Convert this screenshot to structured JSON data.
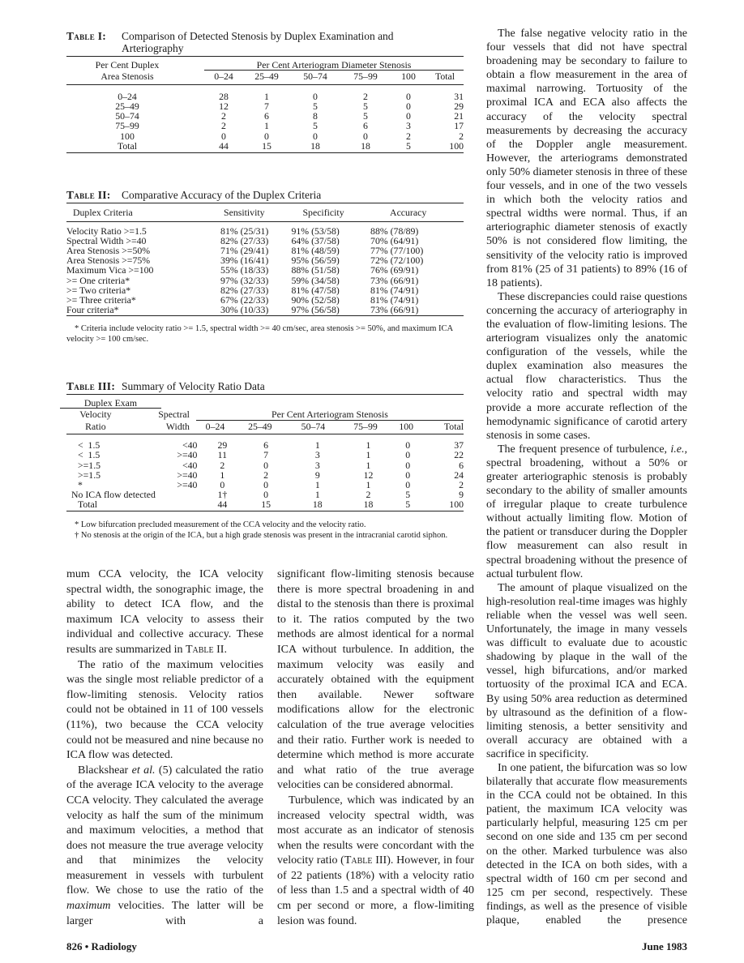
{
  "table1": {
    "label": "Table I:",
    "title_line1": "Comparison of Detected Stenosis by Duplex Examination and",
    "title_line2": "Arteriography",
    "row_header_line1": "Per Cent Duplex",
    "row_header_line2": "Area Stenosis",
    "group_header": "Per Cent Arteriogram Diameter Stenosis",
    "columns": [
      "0–24",
      "25–49",
      "50–74",
      "75–99",
      "100",
      "Total"
    ],
    "rows": [
      [
        "0–24",
        "28",
        "1",
        "0",
        "2",
        "0",
        "31"
      ],
      [
        "25–49",
        "12",
        "7",
        "5",
        "5",
        "0",
        "29"
      ],
      [
        "50–74",
        "2",
        "6",
        "8",
        "5",
        "0",
        "21"
      ],
      [
        "75–99",
        "2",
        "1",
        "5",
        "6",
        "3",
        "17"
      ],
      [
        "100",
        "0",
        "0",
        "0",
        "0",
        "2",
        "2"
      ],
      [
        "Total",
        "44",
        "15",
        "18",
        "18",
        "5",
        "100"
      ]
    ]
  },
  "table2": {
    "label": "Table II:",
    "title": "Comparative Accuracy of the Duplex Criteria",
    "columns": [
      "Duplex Criteria",
      "Sensitivity",
      "Specificity",
      "Accuracy"
    ],
    "rows": [
      [
        "Velocity Ratio >=1.5",
        "81% (25/31)",
        "91% (53/58)",
        "88% (78/89)"
      ],
      [
        "Spectral Width >=40",
        "82% (27/33)",
        "64% (37/58)",
        "70% (64/91)"
      ],
      [
        "Area Stenosis >=50%",
        "71% (29/41)",
        "81% (48/59)",
        "77% (77/100)"
      ],
      [
        "Area Stenosis >=75%",
        "39% (16/41)",
        "95% (56/59)",
        "72% (72/100)"
      ],
      [
        "Maximum Vica >=100",
        "55% (18/33)",
        "88% (51/58)",
        "76% (69/91)"
      ],
      [
        ">= One criteria*",
        "97% (32/33)",
        "59% (34/58)",
        "73% (66/91)"
      ],
      [
        ">= Two criteria*",
        "82% (27/33)",
        "81% (47/58)",
        "81% (74/91)"
      ],
      [
        ">= Three criteria*",
        "67% (22/33)",
        "90% (52/58)",
        "81% (74/91)"
      ],
      [
        "Four criteria*",
        "30% (10/33)",
        "97% (56/58)",
        "73% (66/91)"
      ]
    ],
    "footnote": "* Criteria include velocity ratio >= 1.5, spectral width >= 40 cm/sec, area stenosis >= 50%, and maximum ICA velocity >= 100 cm/sec."
  },
  "table3": {
    "label": "Table III:",
    "title": "Summary of Velocity Ratio Data",
    "duplex_header": "Duplex Exam",
    "sub1_line1": "Velocity",
    "sub1_line2": "Ratio",
    "sub2_line1": "Spectral",
    "sub2_line2": "Width",
    "group_header": "Per Cent Arteriogram Stenosis",
    "columns": [
      "0–24",
      "25–49",
      "50–74",
      "75–99",
      "100",
      "Total"
    ],
    "rows": [
      [
        "<  1.5",
        "<40",
        "29",
        "6",
        "1",
        "1",
        "0",
        "37"
      ],
      [
        "<  1.5",
        ">=40",
        "11",
        "7",
        "3",
        "1",
        "0",
        "22"
      ],
      [
        ">=1.5",
        "<40",
        "2",
        "0",
        "3",
        "1",
        "0",
        "6"
      ],
      [
        ">=1.5",
        ">=40",
        "1",
        "2",
        "9",
        "12",
        "0",
        "24"
      ],
      [
        "*",
        ">=40",
        "0",
        "0",
        "1",
        "1",
        "0",
        "2"
      ]
    ],
    "no_flow_row": [
      "No ICA flow detected",
      "1†",
      "0",
      "1",
      "2",
      "5",
      "9"
    ],
    "total_row": [
      "Total",
      "44",
      "15",
      "18",
      "18",
      "5",
      "100"
    ],
    "footnote1": "* Low bifurcation precluded measurement of the CCA velocity and the velocity ratio.",
    "footnote2": "† No stenosis at the origin of the ICA, but a high grade stenosis was present in the intracranial carotid siphon."
  },
  "columns": {
    "left": [
      [
        {
          "t": "mum CCA velocity, the ICA velocity spectral width, the sonographic image, the ability to detect ICA flow, and the maximum ICA velocity to assess their individual and collective accuracy. These results are summarized in "
        },
        {
          "t": "Table",
          "sc": true
        },
        {
          "t": " II."
        }
      ],
      [
        {
          "t": "The ratio of the maximum velocities was the single most reliable predictor of a flow-limiting stenosis. Velocity ratios could not be obtained in 11 of 100 vessels (11%), two because the CCA velocity could not be measured and nine because no ICA flow was detected."
        }
      ],
      [
        {
          "t": "Blackshear "
        },
        {
          "t": "et al.",
          "i": true
        },
        {
          "t": " (5) calculated the ratio of the average ICA velocity to the average CCA velocity. They calculated the average velocity as half the sum of the minimum and maximum velocities, a method that does not measure the true average velocity and that minimizes the velocity measurement in vessels with turbulent flow. We chose to use the ratio of the "
        },
        {
          "t": "maximum",
          "i": true
        },
        {
          "t": " velocities. The latter will be larger with a"
        }
      ]
    ],
    "middle": [
      [
        {
          "t": "significant flow-limiting stenosis because there is more spectral broadening in and distal to the stenosis than there is proximal to it. The ratios computed by the two methods are almost identical for a normal ICA without turbulence. In addition, the maximum velocity was easily and accurately obtained with the equipment then available. Newer software modifications allow for the electronic calculation of the true average velocities and their ratio. Further work is needed to determine which method is more accurate and what ratio of the true average velocities can be considered abnormal."
        }
      ],
      [
        {
          "t": "Turbulence, which was indicated by an increased velocity spectral width, was most accurate as an indicator of stenosis when the results were concordant with the velocity ratio ("
        },
        {
          "t": "Table",
          "sc": true
        },
        {
          "t": " III). However, in four of 22 patients (18%) with a velocity ratio of less than 1.5 and a spectral width of 40 cm per second or more, a flow-limiting lesion was found."
        }
      ]
    ],
    "right": [
      [
        {
          "t": "The false negative velocity ratio in the four vessels that did not have spectral broadening may be secondary to failure to obtain a flow measurement in the area of maximal narrowing. Tortuosity of the proximal ICA and ECA also affects the accuracy of the velocity spectral measurements by decreasing the accuracy of the Doppler angle measurement. However, the arteriograms demonstrated only 50% diameter stenosis in three of these four vessels, and in one of the two vessels in which both the velocity ratios and spectral widths were normal. Thus, if an arteriographic diameter stenosis of exactly 50% is not considered flow limiting, the sensitivity of the velocity ratio is improved from 81% (25 of 31 patients) to 89% (16 of 18 patients)."
        }
      ],
      [
        {
          "t": "These discrepancies could raise questions concerning the accuracy of arteriography in the evaluation of flow-limiting lesions. The arteriogram visualizes only the anatomic configuration of the vessels, while the duplex examination also measures the actual flow characteristics. Thus the velocity ratio and spectral width may provide a more accurate reflection of the hemodynamic significance of carotid artery stenosis in some cases."
        }
      ],
      [
        {
          "t": "The frequent presence of turbulence, "
        },
        {
          "t": "i.e.,",
          "i": true
        },
        {
          "t": " spectral broadening, without a 50% or greater arteriographic stenosis is probably secondary to the ability of smaller amounts of irregular plaque to create turbulence without actually limiting flow. Motion of the patient or transducer during the Doppler flow measurement can also result in spectral broadening without the presence of actual turbulent flow."
        }
      ],
      [
        {
          "t": "The amount of plaque visualized on the high-resolution real-time images was highly reliable when the vessel was well seen. Unfortunately, the image in many vessels was difficult to evaluate due to acoustic shadowing by plaque in the wall of the vessel, high bifurcations, and/or marked tortuosity of the proximal ICA and ECA. By using 50% area reduction as determined by ultrasound as the definition of a flow-limiting stenosis, a better sensitivity and overall accuracy are obtained with a sacrifice in specificity."
        }
      ],
      [
        {
          "t": "In one patient, the bifurcation was so low bilaterally that accurate flow measurements in the CCA could not be obtained. In this patient, the maximum ICA velocity was particularly helpful, measuring 125 cm per second on one side and 135 cm per second on the other. Marked turbulence was also detected in the ICA on both sides, with a spectral width of 160 cm per second and 125 cm per second, respectively. These findings, as well as the presence of visible plaque, enabled the presence"
        }
      ]
    ]
  },
  "footer": {
    "left": "826 • Radiology",
    "right": "June 1983"
  }
}
